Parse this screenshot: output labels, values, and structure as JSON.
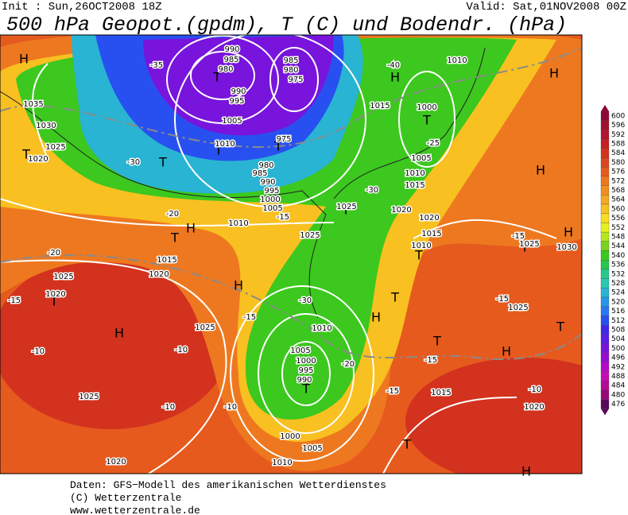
{
  "header": {
    "init": "Init : Sun,26OCT2008 18Z",
    "valid": "Valid: Sat,01NOV2008 00Z",
    "title": "500 hPa Geopot.(gpdm), T (C) und Bodendr. (hPa)"
  },
  "colorbar": {
    "levels": [
      600,
      596,
      592,
      588,
      584,
      580,
      576,
      572,
      568,
      564,
      560,
      556,
      552,
      548,
      544,
      540,
      536,
      532,
      528,
      524,
      520,
      516,
      512,
      508,
      504,
      500,
      496,
      492,
      488,
      484,
      480,
      476
    ],
    "colors": [
      "#8c0a32",
      "#a0102e",
      "#b4142d",
      "#c81e22",
      "#d2321e",
      "#dc461e",
      "#e65a1e",
      "#ee7820",
      "#f09020",
      "#f5a823",
      "#f8c020",
      "#f8dc20",
      "#e6f01e",
      "#b4e61e",
      "#78d21e",
      "#3cc81e",
      "#28c850",
      "#28c88c",
      "#28c8b4",
      "#28b4d2",
      "#2896e6",
      "#2878f0",
      "#2850f0",
      "#3c28e6",
      "#5a1ee6",
      "#7814dc",
      "#960ad2",
      "#b40ac8",
      "#c80ab4",
      "#b40a96",
      "#960a78",
      "#5a0a5a"
    ]
  },
  "map": {
    "labels": [
      "H",
      "H",
      "H",
      "T",
      "T",
      "T",
      "T",
      "T",
      "T",
      "H",
      "H",
      "T",
      "H",
      "T",
      "T",
      "T",
      "T",
      "H",
      "T",
      "H",
      "T",
      "H",
      "T",
      "T",
      "T",
      "H",
      "H",
      "1035",
      "1030",
      "1025",
      "1020",
      "990",
      "985",
      "980",
      "985",
      "980",
      "975",
      "990",
      "995",
      "1005",
      "1010",
      "975",
      "980",
      "985",
      "990",
      "995",
      "1000",
      "1005",
      "1010",
      "1025",
      "1025",
      "1015",
      "1020",
      "1025",
      "1020",
      "1025",
      "1010",
      "1005",
      "1000",
      "995",
      "990",
      "1025",
      "1020",
      "1000",
      "1005",
      "1010",
      "1015",
      "1020",
      "1015",
      "1000",
      "1005",
      "1010",
      "1015",
      "1020",
      "1020",
      "1015",
      "1010",
      "1025",
      "1030",
      "1025",
      "1010",
      "-35",
      "-30",
      "-25",
      "-20",
      "-15",
      "-10",
      "-30",
      "-20",
      "-15",
      "-10",
      "-15",
      "-15",
      "-40",
      "-30",
      "-20",
      "-15",
      "-10",
      "-10",
      "-10",
      "-15",
      "-15"
    ]
  },
  "footer": {
    "lines": [
      "Daten: GFS−Modell des amerikanischen Wetterdienstes",
      "(C) Wetterzentrale",
      "www.wetterzentrale.de"
    ]
  }
}
